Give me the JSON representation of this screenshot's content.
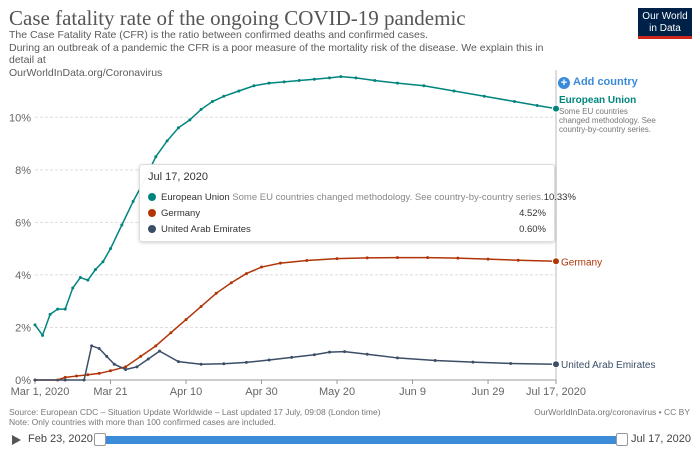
{
  "header": {
    "title": "Case fatality rate of the ongoing COVID-19 pandemic",
    "subtitle_line1": "The Case Fatality Rate (CFR) is the ratio between confirmed deaths and confirmed cases.",
    "subtitle_line2": "During an outbreak of a pandemic the CFR is a poor measure of the mortality risk of the disease. We explain this in detail at",
    "subtitle_line3": "OurWorldInData.org/Coronavirus"
  },
  "logo": {
    "line1": "Our World",
    "line2": "in Data"
  },
  "controls": {
    "add_country": "Add country",
    "add_icon": "plus-circle-icon"
  },
  "tooltip": {
    "date": "Jul 17, 2020",
    "rows": [
      {
        "name": "European Union",
        "note": "Some EU countries changed methodology. See country-by-country series.",
        "value": "10.33%",
        "color": "#00847e"
      },
      {
        "name": "Germany",
        "note": "",
        "value": "4.52%",
        "color": "#c15065"
      },
      {
        "name": "United Arab Emirates",
        "note": "",
        "value": "0.60%",
        "color": "#3c4e66"
      }
    ]
  },
  "chart_data": {
    "type": "line",
    "title": "Case fatality rate of the ongoing COVID-19 pandemic",
    "xlabel": "",
    "ylabel": "",
    "y_unit": "%",
    "ylim": [
      0,
      11.8
    ],
    "x_range": [
      "2020-03-01",
      "2020-07-17"
    ],
    "y_ticks": [
      0,
      2,
      4,
      6,
      8,
      10
    ],
    "y_tick_labels": [
      "0%",
      "2%",
      "4%",
      "6%",
      "8%",
      "10%"
    ],
    "x_ticks": [
      "2020-03-01",
      "2020-03-21",
      "2020-04-10",
      "2020-04-30",
      "2020-05-20",
      "2020-06-09",
      "2020-06-29",
      "2020-07-17"
    ],
    "x_tick_labels": [
      "Mar 1, 2020",
      "Mar 21",
      "Apr 10",
      "Apr 30",
      "May 20",
      "Jun 9",
      "Jun 29",
      "Jul 17, 2020"
    ],
    "grid": "horizontal dashed",
    "legend": "line-end labels on the right",
    "series": [
      {
        "name": "European Union",
        "label_note": "Some EU countries changed methodology. See country-by-country series.",
        "color": "#00847e",
        "x": [
          "2020-03-01",
          "2020-03-03",
          "2020-03-05",
          "2020-03-07",
          "2020-03-09",
          "2020-03-11",
          "2020-03-13",
          "2020-03-15",
          "2020-03-17",
          "2020-03-19",
          "2020-03-21",
          "2020-03-24",
          "2020-03-27",
          "2020-03-30",
          "2020-04-02",
          "2020-04-05",
          "2020-04-08",
          "2020-04-11",
          "2020-04-14",
          "2020-04-17",
          "2020-04-20",
          "2020-04-24",
          "2020-04-28",
          "2020-05-02",
          "2020-05-06",
          "2020-05-10",
          "2020-05-14",
          "2020-05-18",
          "2020-05-21",
          "2020-05-25",
          "2020-05-30",
          "2020-06-05",
          "2020-06-12",
          "2020-06-20",
          "2020-06-28",
          "2020-07-06",
          "2020-07-12",
          "2020-07-17"
        ],
        "values": [
          2.1,
          1.7,
          2.5,
          2.7,
          2.7,
          3.5,
          3.9,
          3.8,
          4.2,
          4.5,
          5.0,
          5.9,
          6.8,
          7.6,
          8.5,
          9.1,
          9.6,
          9.9,
          10.3,
          10.6,
          10.8,
          11.0,
          11.2,
          11.3,
          11.35,
          11.4,
          11.45,
          11.5,
          11.55,
          11.5,
          11.4,
          11.3,
          11.2,
          11.0,
          10.8,
          10.6,
          10.45,
          10.33
        ]
      },
      {
        "name": "Germany",
        "color": "#c15065",
        "x": [
          "2020-03-01",
          "2020-03-07",
          "2020-03-09",
          "2020-03-12",
          "2020-03-15",
          "2020-03-18",
          "2020-03-21",
          "2020-03-25",
          "2020-03-29",
          "2020-04-02",
          "2020-04-06",
          "2020-04-10",
          "2020-04-14",
          "2020-04-18",
          "2020-04-22",
          "2020-04-26",
          "2020-04-30",
          "2020-05-05",
          "2020-05-12",
          "2020-05-20",
          "2020-05-28",
          "2020-06-05",
          "2020-06-13",
          "2020-06-21",
          "2020-06-29",
          "2020-07-07",
          "2020-07-17"
        ],
        "values": [
          0.0,
          0.0,
          0.1,
          0.15,
          0.2,
          0.25,
          0.35,
          0.5,
          0.9,
          1.3,
          1.8,
          2.3,
          2.8,
          3.3,
          3.7,
          4.05,
          4.3,
          4.45,
          4.55,
          4.62,
          4.65,
          4.66,
          4.66,
          4.64,
          4.6,
          4.56,
          4.52
        ]
      },
      {
        "name": "United Arab Emirates",
        "color": "#3c4e66",
        "x": [
          "2020-03-01",
          "2020-03-09",
          "2020-03-14",
          "2020-03-16",
          "2020-03-18",
          "2020-03-20",
          "2020-03-22",
          "2020-03-25",
          "2020-03-28",
          "2020-03-31",
          "2020-04-03",
          "2020-04-08",
          "2020-04-14",
          "2020-04-20",
          "2020-04-26",
          "2020-05-02",
          "2020-05-08",
          "2020-05-14",
          "2020-05-18",
          "2020-05-22",
          "2020-05-28",
          "2020-06-05",
          "2020-06-15",
          "2020-06-25",
          "2020-07-05",
          "2020-07-17"
        ],
        "values": [
          0.0,
          0.0,
          0.0,
          1.3,
          1.2,
          0.9,
          0.6,
          0.4,
          0.5,
          0.8,
          1.1,
          0.7,
          0.6,
          0.62,
          0.67,
          0.76,
          0.86,
          0.96,
          1.06,
          1.08,
          0.98,
          0.84,
          0.74,
          0.68,
          0.63,
          0.6
        ]
      }
    ]
  },
  "footer": {
    "source": "Source: European CDC – Situation Update Worldwide – Last updated 17 July, 09:08 (London time)",
    "note": "Note: Only countries with more than 100 confirmed cases are included.",
    "right": "OurWorldInData.org/coronavirus • CC BY"
  },
  "timeline": {
    "start": "Feb 23, 2020",
    "end": "Jul 17, 2020",
    "play_icon": "play-icon"
  }
}
